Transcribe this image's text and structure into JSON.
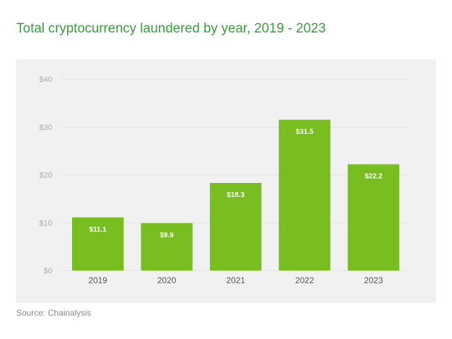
{
  "chart_data": {
    "type": "bar",
    "title": "Total cryptocurrency laundered by year, 2019 - 2023",
    "categories": [
      "2019",
      "2020",
      "2021",
      "2022",
      "2023"
    ],
    "values": [
      11.1,
      9.9,
      18.3,
      31.5,
      22.2
    ],
    "data_labels": [
      "$11.1",
      "$9.9",
      "$18.3",
      "$31.5",
      "$22.2"
    ],
    "yticks": [
      0,
      10,
      20,
      30,
      40
    ],
    "ytick_labels": [
      "$0",
      "$10",
      "$20",
      "$30",
      "$40"
    ],
    "ylim": [
      0,
      40
    ],
    "xlabel": "",
    "ylabel": "",
    "grid": true,
    "legend": "none",
    "colors": {
      "bar": "#78be20",
      "title": "#3c9b3f",
      "panel": "#f1f1f1",
      "grid": "#e2e2e2"
    }
  },
  "source": "Source: Chainalysis"
}
